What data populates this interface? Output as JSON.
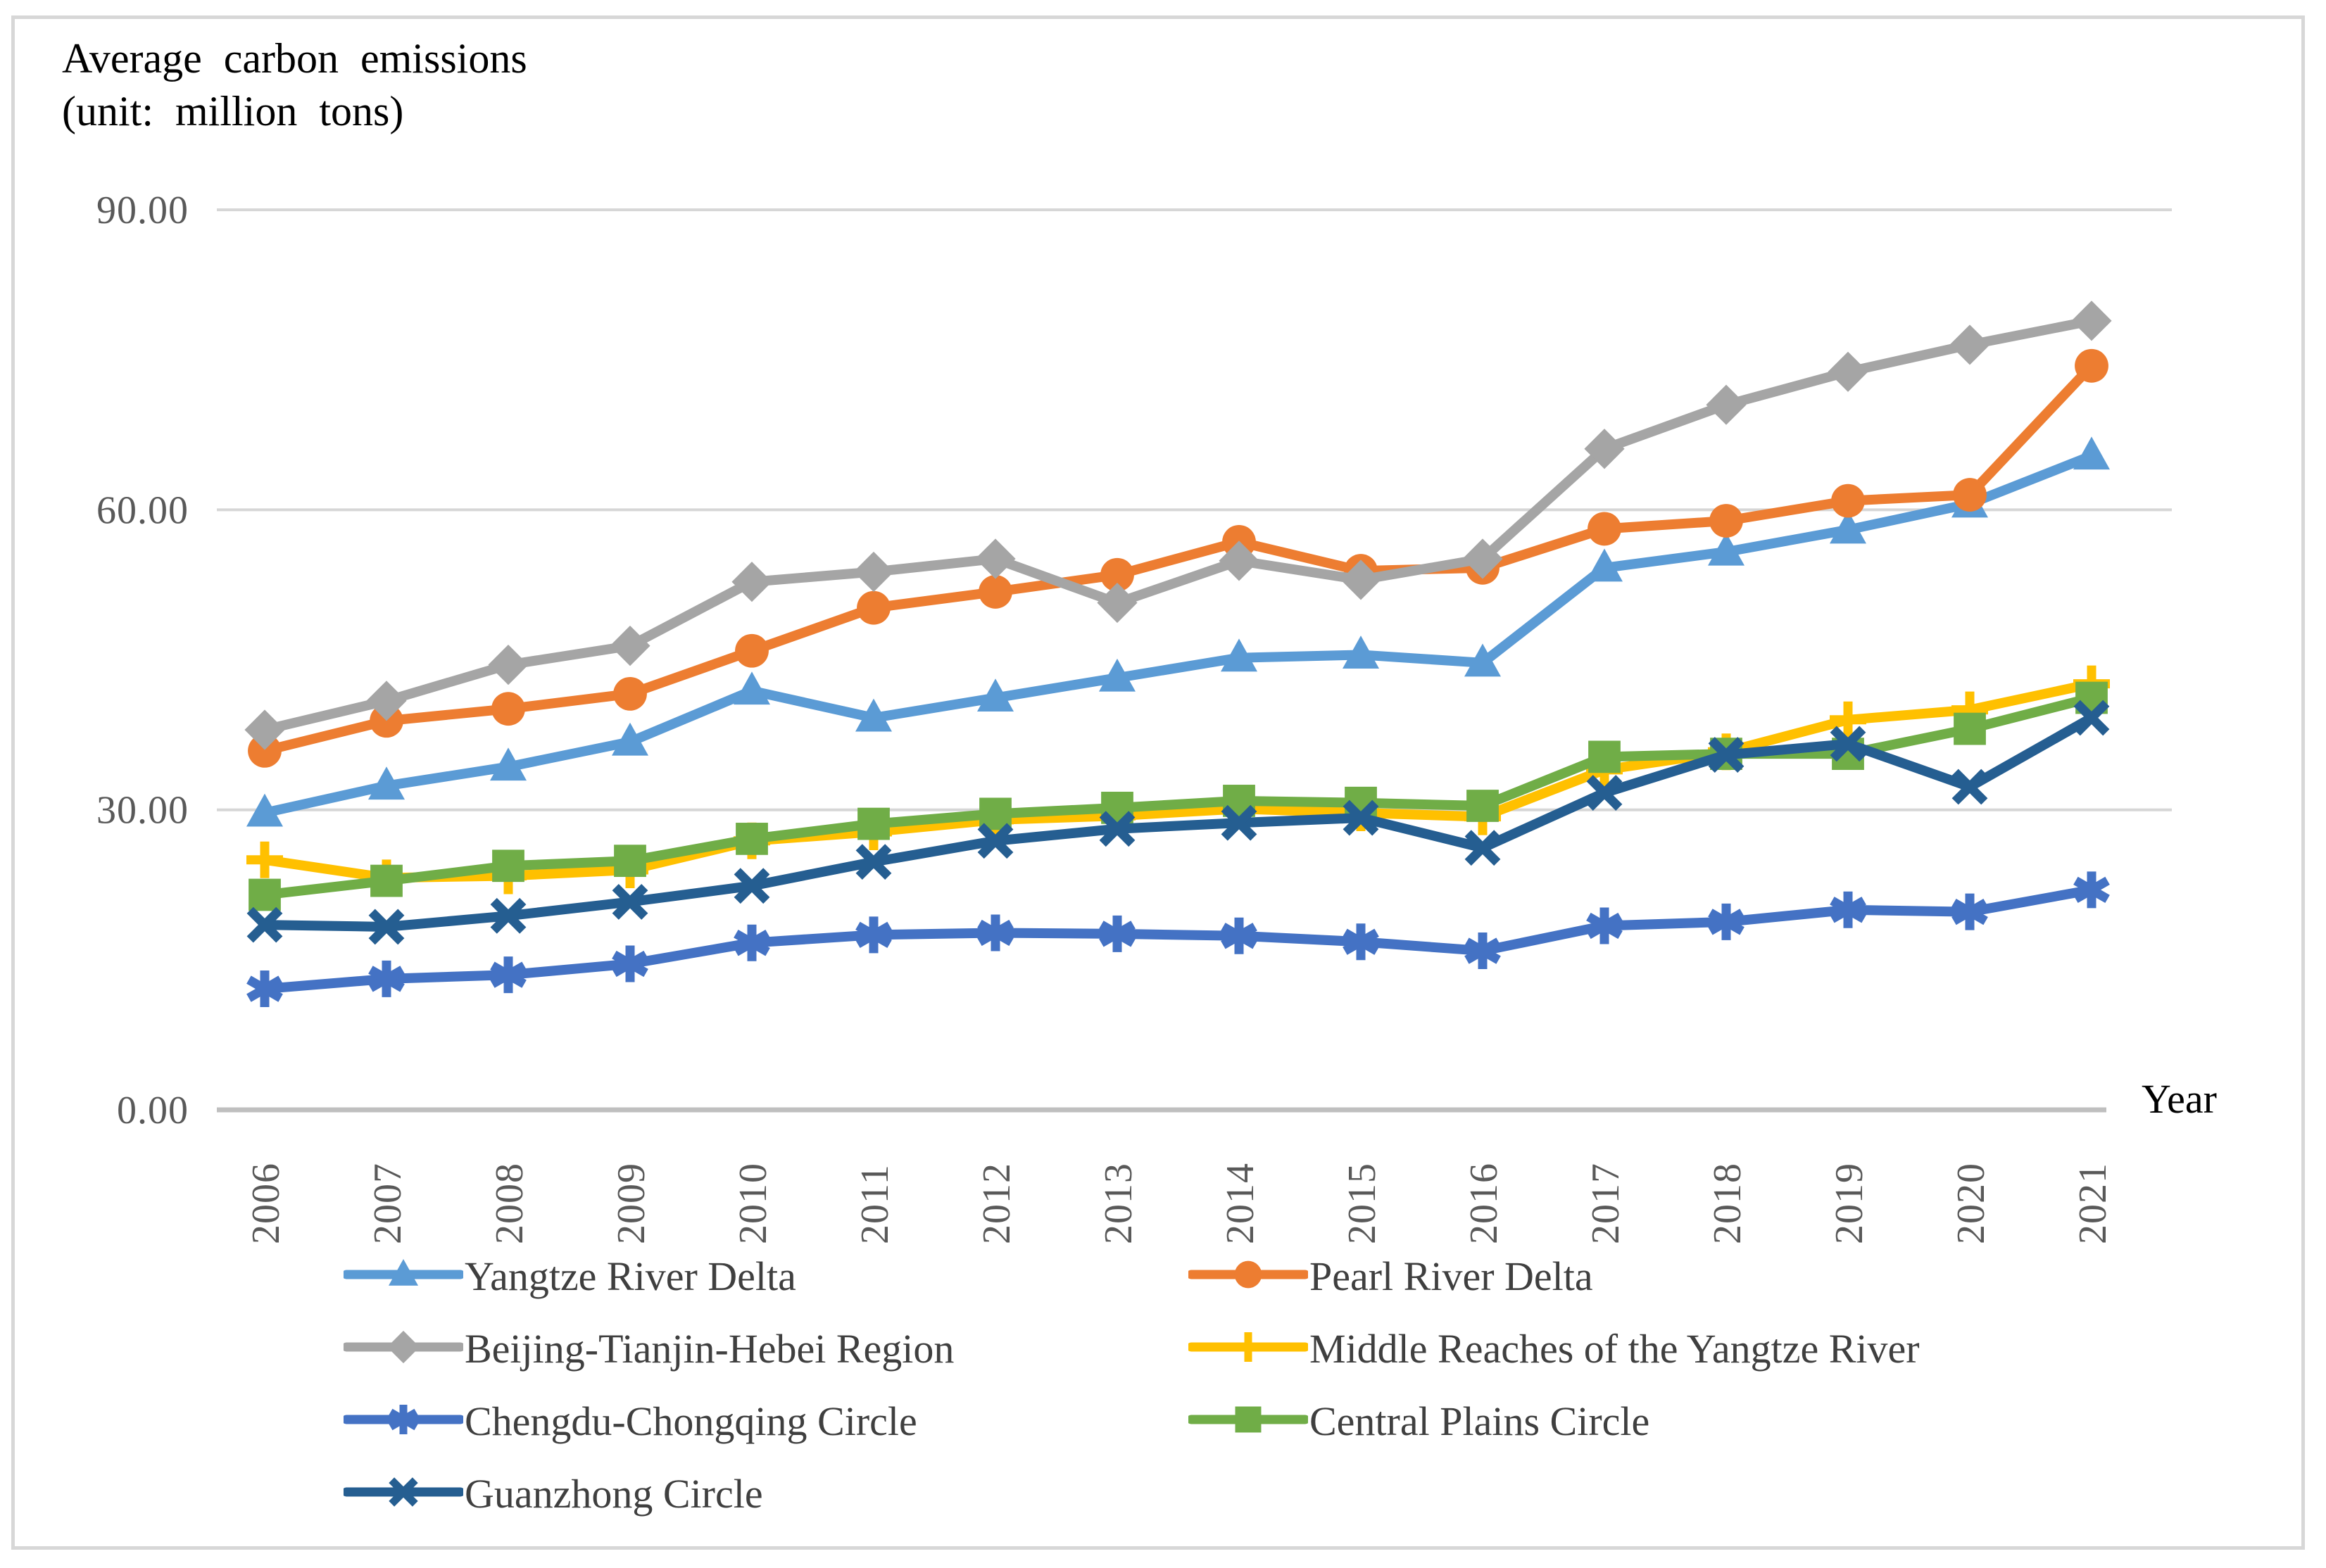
{
  "title_line1": "Average carbon emissions",
  "title_line2": "(unit: million tons)",
  "axis": {
    "x_title": "Year",
    "y_ticks": [
      {
        "label": "90.00",
        "value": 90
      },
      {
        "label": "60.00",
        "value": 60
      },
      {
        "label": "30.00",
        "value": 30
      },
      {
        "label": "0.00",
        "value": 0
      }
    ]
  },
  "colors": {
    "gridline": "#d6d6d6",
    "baseline": "#bfbfbf",
    "tick_text": "#595959",
    "legend_text": "#3f3f3f",
    "title_text": "#000000"
  },
  "chart_data": {
    "type": "line",
    "title": "Average carbon emissions (unit: million tons)",
    "xlabel": "Year",
    "ylabel": "Average carbon emissions (million tons)",
    "ylim": [
      0,
      90
    ],
    "ytick_step": 30,
    "grid": true,
    "legend_position": "bottom",
    "categories": [
      "2006",
      "2007",
      "2008",
      "2009",
      "2010",
      "2011",
      "2012",
      "2013",
      "2014",
      "2015",
      "2016",
      "2017",
      "2018",
      "2019",
      "2020",
      "2021"
    ],
    "series": [
      {
        "name": "Yangtze River Delta",
        "color": "#5B9BD5",
        "marker": "triangle",
        "values": [
          29.7,
          32.4,
          34.3,
          36.8,
          41.9,
          39.2,
          41.2,
          43.2,
          45.2,
          45.5,
          44.7,
          54.2,
          55.8,
          58.0,
          60.6,
          65.4
        ]
      },
      {
        "name": "Pearl River Delta",
        "color": "#ED7D31",
        "marker": "circle",
        "values": [
          35.9,
          38.9,
          40.1,
          41.6,
          45.9,
          50.2,
          51.8,
          53.5,
          56.8,
          53.9,
          54.2,
          58.1,
          58.9,
          60.9,
          61.5,
          74.4
        ]
      },
      {
        "name": "Beijing-Tianjin-Hebei Region",
        "color": "#A5A5A5",
        "marker": "diamond",
        "values": [
          38.0,
          40.9,
          44.5,
          46.4,
          52.8,
          53.8,
          55.1,
          50.7,
          54.9,
          53.0,
          55.1,
          66.1,
          70.5,
          73.8,
          76.5,
          78.9
        ]
      },
      {
        "name": "Middle Reaches of the Yangtze River",
        "color": "#FFC000",
        "marker": "plus",
        "values": [
          25.0,
          23.2,
          23.4,
          24.0,
          26.9,
          27.8,
          29.0,
          29.4,
          30.1,
          29.7,
          29.3,
          34.0,
          35.8,
          39.0,
          40.0,
          42.6
        ]
      },
      {
        "name": "Chengdu-Chongqing Circle",
        "color": "#4472C4",
        "marker": "asterisk",
        "values": [
          12.1,
          13.1,
          13.5,
          14.6,
          16.7,
          17.5,
          17.7,
          17.6,
          17.4,
          16.8,
          15.9,
          18.4,
          18.8,
          20.0,
          19.8,
          22.0
        ]
      },
      {
        "name": "Central Plains Circle",
        "color": "#70AD47",
        "marker": "square",
        "values": [
          21.5,
          22.9,
          24.4,
          24.9,
          27.1,
          28.6,
          29.6,
          30.2,
          30.9,
          30.7,
          30.4,
          35.3,
          35.6,
          35.6,
          38.1,
          41.2
        ]
      },
      {
        "name": "Guanzhong Circle",
        "color": "#255E91",
        "marker": "x",
        "values": [
          18.5,
          18.3,
          19.4,
          20.8,
          22.4,
          24.8,
          26.9,
          28.1,
          28.7,
          29.2,
          26.2,
          31.7,
          35.5,
          36.6,
          32.3,
          39.2
        ]
      }
    ]
  }
}
